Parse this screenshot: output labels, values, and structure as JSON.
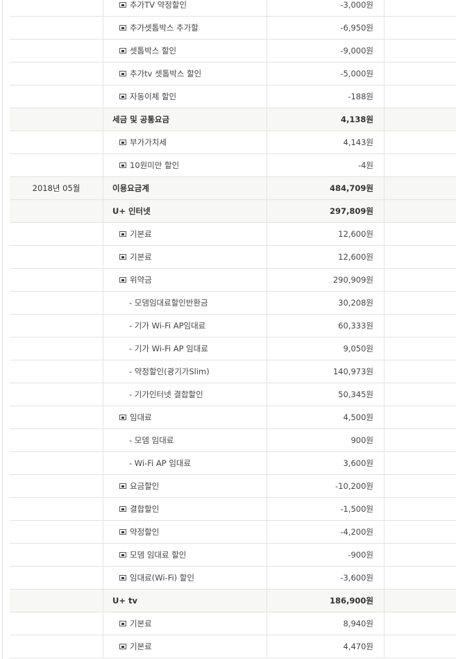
{
  "rows": [
    {
      "date": "",
      "label": "추가TV 약정할인",
      "amount": "-3,000원",
      "type": "item",
      "hl": false
    },
    {
      "date": "",
      "label": "추가셋톱박스 추가할",
      "amount": "-6,950원",
      "type": "item",
      "hl": false
    },
    {
      "date": "",
      "label": "셋톱박스 할인",
      "amount": "-9,000원",
      "type": "item",
      "hl": false
    },
    {
      "date": "",
      "label": "추가tv 셋톱박스 할인",
      "amount": "-5,000원",
      "type": "item",
      "hl": false
    },
    {
      "date": "",
      "label": "자동이체 할인",
      "amount": "-188원",
      "type": "item",
      "hl": false
    },
    {
      "date": "",
      "label": "세금 및 공통요금",
      "amount": "4,138원",
      "type": "group",
      "hl": true
    },
    {
      "date": "",
      "label": "부가가치세",
      "amount": "4,143원",
      "type": "item",
      "hl": false
    },
    {
      "date": "",
      "label": "10원미만 할인",
      "amount": "-4원",
      "type": "item",
      "hl": false
    },
    {
      "date": "2018년 05월",
      "label": "이용요금계",
      "amount": "484,709원",
      "type": "group",
      "hl": true
    },
    {
      "date": "",
      "label": "U+ 인터넷",
      "amount": "297,809원",
      "type": "group",
      "hl": true
    },
    {
      "date": "",
      "label": "기본료",
      "amount": "12,600원",
      "type": "item",
      "hl": false
    },
    {
      "date": "",
      "label": "기본료",
      "amount": "12,600원",
      "type": "item",
      "hl": false
    },
    {
      "date": "",
      "label": "위약금",
      "amount": "290,909원",
      "type": "item",
      "hl": false
    },
    {
      "date": "",
      "label": "- 모뎀임대료할인반환금",
      "amount": "30,208원",
      "type": "sub",
      "hl": false
    },
    {
      "date": "",
      "label": "- 기가 Wi-Fi AP임대료",
      "amount": "60,333원",
      "type": "sub",
      "hl": false
    },
    {
      "date": "",
      "label": "- 기가 Wi-Fi AP 임대료",
      "amount": "9,050원",
      "type": "sub",
      "hl": false
    },
    {
      "date": "",
      "label": "- 약정할인(광기가Slim)",
      "amount": "140,973원",
      "type": "sub",
      "hl": false
    },
    {
      "date": "",
      "label": "- 기가인터넷 결합할인",
      "amount": "50,345원",
      "type": "sub",
      "hl": false
    },
    {
      "date": "",
      "label": "임대료",
      "amount": "4,500원",
      "type": "item",
      "hl": false
    },
    {
      "date": "",
      "label": "- 모뎀 임대료",
      "amount": "900원",
      "type": "sub",
      "hl": false
    },
    {
      "date": "",
      "label": "- Wi-Fi AP 임대료",
      "amount": "3,600원",
      "type": "sub",
      "hl": false
    },
    {
      "date": "",
      "label": "요금할인",
      "amount": "-10,200원",
      "type": "item",
      "hl": false
    },
    {
      "date": "",
      "label": "결합할인",
      "amount": "-1,500원",
      "type": "item",
      "hl": false
    },
    {
      "date": "",
      "label": "약정할인",
      "amount": "-4,200원",
      "type": "item",
      "hl": false
    },
    {
      "date": "",
      "label": "모뎀 임대료 할인",
      "amount": "-900원",
      "type": "item",
      "hl": false
    },
    {
      "date": "",
      "label": "임대료(Wi-Fi) 할인",
      "amount": "-3,600원",
      "type": "item",
      "hl": false
    },
    {
      "date": "",
      "label": "U+ tv",
      "amount": "186,900원",
      "type": "group",
      "hl": true
    },
    {
      "date": "",
      "label": "기본료",
      "amount": "8,940원",
      "type": "item",
      "hl": false
    },
    {
      "date": "",
      "label": "기본료",
      "amount": "4,470원",
      "type": "item",
      "hl": false
    }
  ]
}
